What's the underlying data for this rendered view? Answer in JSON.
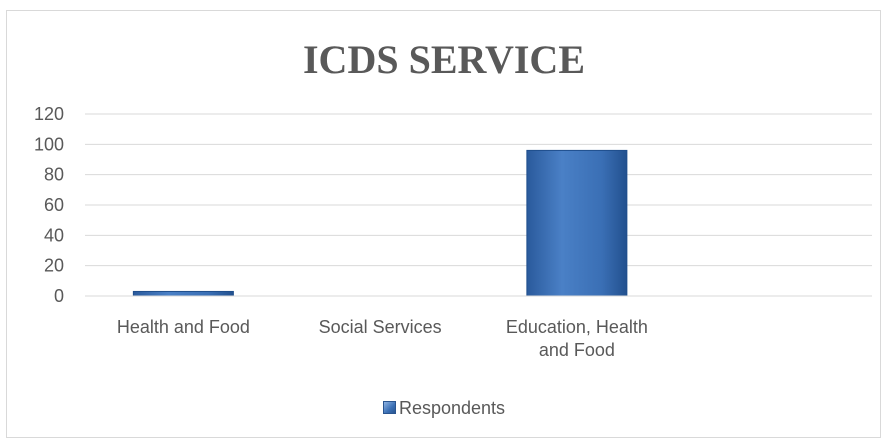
{
  "chart_data": {
    "type": "bar",
    "title": "ICDS SERVICE",
    "categories": [
      "Health and Food",
      "Social Services",
      "Education, Health and Food",
      ""
    ],
    "category_lines": [
      [
        "Health and Food"
      ],
      [
        "Social Services"
      ],
      [
        "Education, Health",
        "and Food"
      ],
      [
        ""
      ]
    ],
    "series": [
      {
        "name": "Respondents",
        "values": [
          3,
          0,
          96,
          0
        ]
      }
    ],
    "yticks": [
      0,
      20,
      40,
      60,
      80,
      100,
      120
    ],
    "ylim": [
      0,
      120
    ],
    "grid": true,
    "legend": "bottom",
    "colors": {
      "bar": "#3a6fb5",
      "bar_light": "#8fb4e3",
      "bar_dark": "#1f4e8c",
      "grid": "#d9d9d9",
      "text": "#595959"
    }
  }
}
